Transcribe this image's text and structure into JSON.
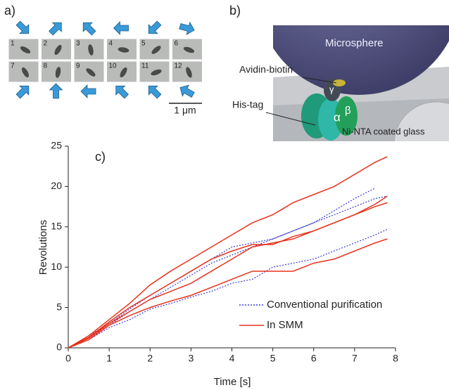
{
  "figure": {
    "panel_a": {
      "label": "a)",
      "tiles": [
        "1",
        "2",
        "3",
        "4",
        "5",
        "6",
        "7",
        "8",
        "9",
        "10",
        "11",
        "12"
      ],
      "scale": "1 μm"
    },
    "panel_b": {
      "label": "b)",
      "microsphere": "Microsphere",
      "avidin": "Avidin-biotin",
      "histag": "His-tag",
      "glass": "Ni-NTA coated glass",
      "alpha": "α",
      "beta": "β",
      "gamma": "γ"
    }
  },
  "chart_data": {
    "type": "line",
    "title": "c)",
    "xlabel": "Time [s]",
    "ylabel": "Revolutions",
    "x": [
      0,
      0.5,
      1,
      1.5,
      2,
      2.5,
      3,
      3.5,
      4,
      4.5,
      5,
      5.5,
      6,
      6.5,
      7,
      7.5,
      7.8
    ],
    "xlim": [
      0,
      8
    ],
    "xticks": [
      0,
      1,
      2,
      3,
      4,
      5,
      6,
      7,
      8
    ],
    "ylim": [
      0,
      25
    ],
    "yticks": [
      0,
      5,
      10,
      15,
      20,
      25
    ],
    "series": [
      {
        "name": "Conventional purification",
        "color": "#3b3bd6",
        "dashed": true,
        "lines": [
          [
            0,
            1.5,
            3,
            4.8,
            6.5,
            8,
            9.5,
            11,
            12.5,
            13,
            13.5,
            14.5,
            15.5,
            17,
            18.5,
            19.8,
            null
          ],
          [
            0,
            1.2,
            2.8,
            4.5,
            6,
            7.5,
            9,
            10.5,
            11.5,
            12.5,
            13.5,
            14.5,
            15.5,
            16.5,
            17.5,
            18.5,
            18.8
          ],
          [
            0,
            1,
            2.5,
            3.5,
            4.8,
            5.5,
            6.3,
            7,
            8,
            8.5,
            10,
            10.5,
            11,
            12,
            13,
            14,
            14.7
          ]
        ]
      },
      {
        "name": "In SMM",
        "color": "#e8321c",
        "dashed": false,
        "lines": [
          [
            0,
            1.5,
            3.5,
            5.5,
            7.8,
            9.5,
            11,
            12.5,
            14,
            15.5,
            16.5,
            18,
            19,
            20,
            21.5,
            23,
            23.7
          ],
          [
            0,
            1.3,
            3.2,
            5,
            6.5,
            8,
            9.5,
            11,
            12,
            12.8,
            12.8,
            13.8,
            14.5,
            15.5,
            16.5,
            17.8,
            18.8
          ],
          [
            0,
            1.2,
            3,
            4.5,
            6,
            7,
            8,
            9.5,
            11,
            12.5,
            13,
            13.5,
            14.5,
            15.5,
            16.5,
            17.5,
            18
          ],
          [
            0,
            1,
            2.8,
            4,
            5,
            5.8,
            6.5,
            7.5,
            8.5,
            9.5,
            9.5,
            9.5,
            10.5,
            11,
            12,
            13,
            13.5
          ]
        ]
      }
    ]
  }
}
